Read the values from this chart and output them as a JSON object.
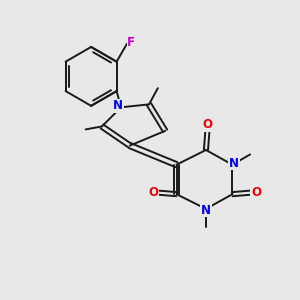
{
  "background_color": "#e8e8e8",
  "atom_colors": {
    "C": "#1a1a1a",
    "N": "#0000ee",
    "O": "#ee0000",
    "F": "#cc00cc",
    "H": "#1a1a1a"
  },
  "bond_color": "#1a1a1a",
  "bond_width": 1.4,
  "font_size_atom": 8.5,
  "font_size_methyl": 7.0
}
